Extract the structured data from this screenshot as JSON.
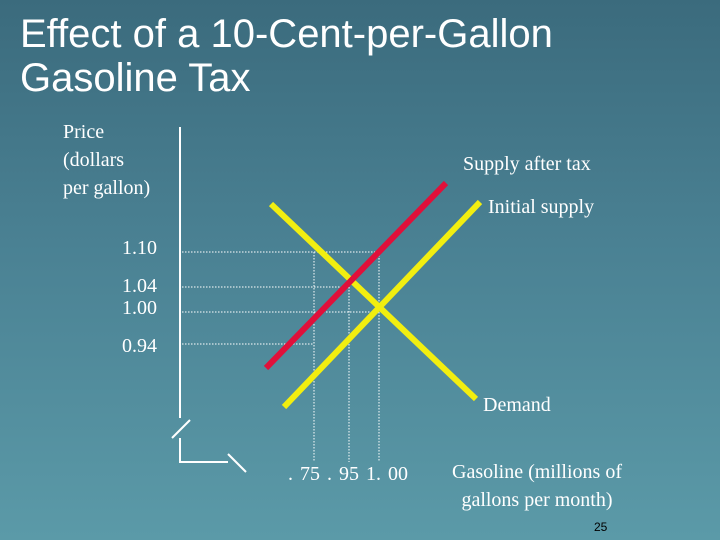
{
  "title": {
    "line1": "Effect of a 10-Cent-per-Gallon",
    "line2": "Gasoline Tax"
  },
  "y_axis": {
    "label_lines": [
      "Price",
      "(dollars",
      "per gallon)"
    ],
    "ticks": [
      "1.10",
      "1.04",
      "1.00",
      "0.94"
    ]
  },
  "x_axis": {
    "ticks": ". 75  . 95  1. 00",
    "label_lines": [
      "Gasoline (millions of",
      "gallons per month)"
    ]
  },
  "curves": {
    "supply_after_tax": "Supply after tax",
    "initial_supply": "Initial supply",
    "demand": "Demand"
  },
  "colors": {
    "supply_after_tax": "#e0103a",
    "initial_supply": "#f2ee10",
    "demand": "#f2ee10",
    "guide_lines": "#ffffff"
  },
  "page_number": "25"
}
